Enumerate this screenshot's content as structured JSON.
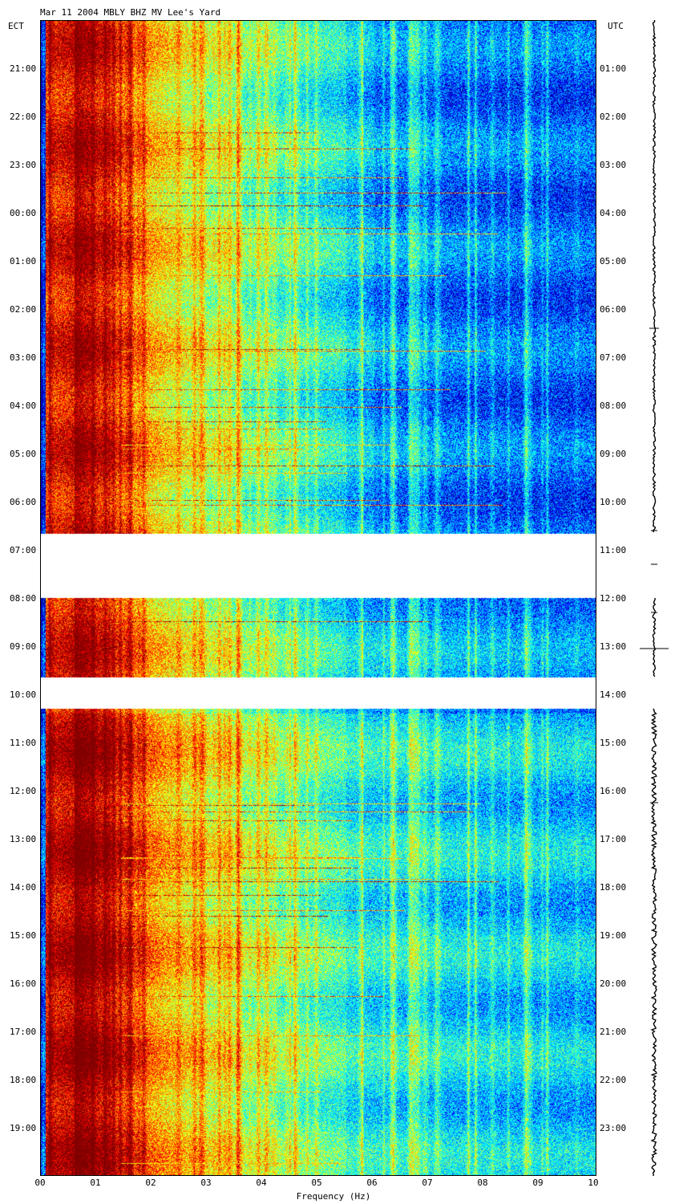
{
  "title": "Mar 11 2004 MBLY BHZ MV Lee's Yard",
  "left_axis_label": "ECT",
  "right_axis_label": "UTC",
  "chart_data": {
    "type": "heatmap",
    "title": "Mar 11 2004 MBLY BHZ MV Lee's Yard",
    "xlabel": "Frequency (Hz)",
    "x_ticks": [
      "00",
      "01",
      "02",
      "03",
      "04",
      "05",
      "06",
      "07",
      "08",
      "09",
      "10"
    ],
    "xlim": [
      0,
      10
    ],
    "y_ticks_left_ect": [
      "21:00",
      "22:00",
      "23:00",
      "00:00",
      "01:00",
      "02:00",
      "03:00",
      "04:00",
      "05:00",
      "06:00",
      "07:00",
      "08:00",
      "09:00",
      "10:00",
      "11:00",
      "12:00",
      "13:00",
      "14:00",
      "15:00",
      "16:00",
      "17:00",
      "18:00",
      "19:00"
    ],
    "y_ticks_right_utc": [
      "01:00",
      "02:00",
      "03:00",
      "04:00",
      "05:00",
      "06:00",
      "07:00",
      "08:00",
      "09:00",
      "10:00",
      "11:00",
      "12:00",
      "13:00",
      "14:00",
      "15:00",
      "16:00",
      "17:00",
      "18:00",
      "19:00",
      "20:00",
      "21:00",
      "22:00",
      "23:00"
    ],
    "time_range_hours": 24,
    "data_gaps_hours_from_start": [
      [
        10.65,
        12.0
      ],
      [
        13.65,
        14.3
      ]
    ],
    "colormap": [
      "#00008f",
      "#0000ff",
      "#00a8ff",
      "#00ffff",
      "#90ff70",
      "#ffff00",
      "#ff8000",
      "#ff0000",
      "#800000"
    ],
    "background": "#1a3cff"
  }
}
